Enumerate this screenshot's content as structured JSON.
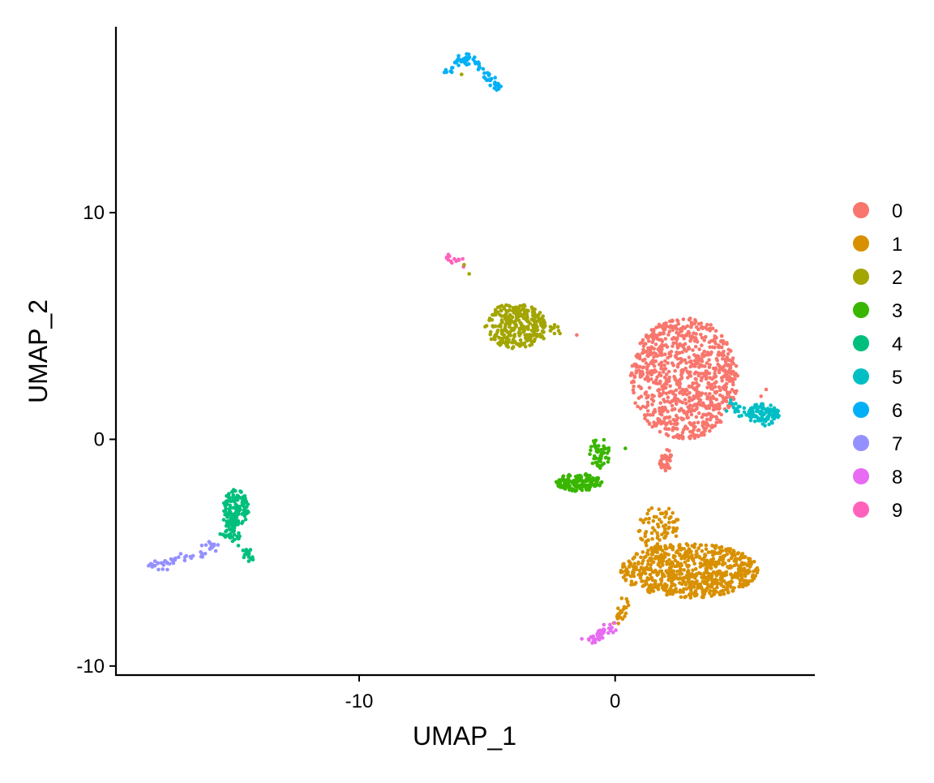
{
  "chart_data": {
    "type": "scatter",
    "title": "",
    "xlabel": "UMAP_1",
    "ylabel": "UMAP_2",
    "xlim": [
      -19.5,
      7.8
    ],
    "ylim": [
      -10.4,
      18.2
    ],
    "x_ticks": [
      -10,
      0
    ],
    "y_ticks": [
      -10,
      0,
      10
    ],
    "grid": false,
    "legend_placement": "right",
    "clusters": [
      {
        "name": "0",
        "color": "#F8766D",
        "shape": "ellipse",
        "cx": 2.7,
        "cy": 2.7,
        "rx": 2.1,
        "ry": 2.7,
        "n": 900
      },
      {
        "name": "0",
        "color": "#F8766D",
        "shape": "line",
        "points": [
          [
            2.1,
            -0.5
          ],
          [
            1.9,
            -1.3
          ]
        ],
        "n": 40
      },
      {
        "name": "1",
        "color": "#D89000",
        "shape": "ellipse",
        "cx": 2.9,
        "cy": -5.8,
        "rx": 2.7,
        "ry": 1.2,
        "n": 700
      },
      {
        "name": "1",
        "color": "#D89000",
        "shape": "ellipse",
        "cx": 1.7,
        "cy": -3.9,
        "rx": 0.8,
        "ry": 1.0,
        "n": 80
      },
      {
        "name": "1",
        "color": "#D89000",
        "shape": "line",
        "points": [
          [
            0.4,
            -7.0
          ],
          [
            0.2,
            -8.0
          ]
        ],
        "n": 25
      },
      {
        "name": "2",
        "color": "#A3A500",
        "shape": "ellipse",
        "cx": -3.9,
        "cy": 5.0,
        "rx": 1.2,
        "ry": 1.0,
        "n": 300
      },
      {
        "name": "2",
        "color": "#A3A500",
        "shape": "line",
        "points": [
          [
            -2.7,
            4.9
          ],
          [
            -2.1,
            4.7
          ]
        ],
        "n": 15
      },
      {
        "name": "3",
        "color": "#39B600",
        "shape": "ellipse",
        "cx": -1.4,
        "cy": -1.9,
        "rx": 0.9,
        "ry": 0.4,
        "n": 140
      },
      {
        "name": "3",
        "color": "#39B600",
        "shape": "ellipse",
        "cx": -0.6,
        "cy": -0.6,
        "rx": 0.4,
        "ry": 0.7,
        "n": 50
      },
      {
        "name": "4",
        "color": "#00BF7D",
        "shape": "ellipse",
        "cx": -14.8,
        "cy": -3.0,
        "rx": 0.5,
        "ry": 0.8,
        "n": 120
      },
      {
        "name": "4",
        "color": "#00BF7D",
        "shape": "line",
        "points": [
          [
            -15.2,
            -4.3
          ],
          [
            -14.9,
            -3.4
          ]
        ],
        "n": 40
      },
      {
        "name": "4",
        "color": "#00BF7D",
        "shape": "line",
        "points": [
          [
            -14.8,
            -4.2
          ],
          [
            -14.2,
            -5.4
          ]
        ],
        "n": 25
      },
      {
        "name": "5",
        "color": "#00BFC4",
        "shape": "ellipse",
        "cx": 5.8,
        "cy": 1.1,
        "rx": 0.6,
        "ry": 0.5,
        "n": 110
      },
      {
        "name": "5",
        "color": "#00BFC4",
        "shape": "line",
        "points": [
          [
            4.4,
            1.5
          ],
          [
            5.3,
            1.1
          ]
        ],
        "n": 20
      },
      {
        "name": "6",
        "color": "#00B0F6",
        "shape": "line",
        "points": [
          [
            -6.6,
            16.2
          ],
          [
            -5.9,
            16.8
          ],
          [
            -5.5,
            16.7
          ],
          [
            -4.9,
            15.9
          ],
          [
            -4.5,
            15.4
          ]
        ],
        "n": 70
      },
      {
        "name": "7",
        "color": "#9590FF",
        "shape": "line",
        "points": [
          [
            -18.2,
            -5.6
          ],
          [
            -17.3,
            -5.4
          ],
          [
            -16.3,
            -5.1
          ],
          [
            -15.6,
            -4.6
          ]
        ],
        "n": 60
      },
      {
        "name": "8",
        "color": "#E76BF3",
        "shape": "line",
        "points": [
          [
            -1.0,
            -9.0
          ],
          [
            -0.5,
            -8.6
          ],
          [
            -0.1,
            -8.2
          ]
        ],
        "n": 40
      },
      {
        "name": "9",
        "color": "#FF62BC",
        "shape": "line",
        "points": [
          [
            -6.6,
            8.0
          ],
          [
            -5.9,
            7.9
          ]
        ],
        "n": 14
      }
    ],
    "outliers": [
      {
        "x": -6.0,
        "y": 16.1,
        "color": "#A3A500"
      },
      {
        "x": -5.7,
        "y": 7.3,
        "color": "#A3A500"
      },
      {
        "x": 5.7,
        "y": 1.9,
        "color": "#F8766D"
      },
      {
        "x": 5.9,
        "y": 2.2,
        "color": "#F8766D"
      },
      {
        "x": -1.5,
        "y": 4.6,
        "color": "#F8766D"
      },
      {
        "x": 0.4,
        "y": -0.4,
        "color": "#39B600"
      },
      {
        "x": -5.9,
        "y": 7.7,
        "color": "#A3A500"
      }
    ],
    "legend": [
      {
        "label": "0",
        "color": "#F8766D"
      },
      {
        "label": "1",
        "color": "#D89000"
      },
      {
        "label": "2",
        "color": "#A3A500"
      },
      {
        "label": "3",
        "color": "#39B600"
      },
      {
        "label": "4",
        "color": "#00BF7D"
      },
      {
        "label": "5",
        "color": "#00BFC4"
      },
      {
        "label": "6",
        "color": "#00B0F6"
      },
      {
        "label": "7",
        "color": "#9590FF"
      },
      {
        "label": "8",
        "color": "#E76BF3"
      },
      {
        "label": "9",
        "color": "#FF62BC"
      }
    ]
  }
}
